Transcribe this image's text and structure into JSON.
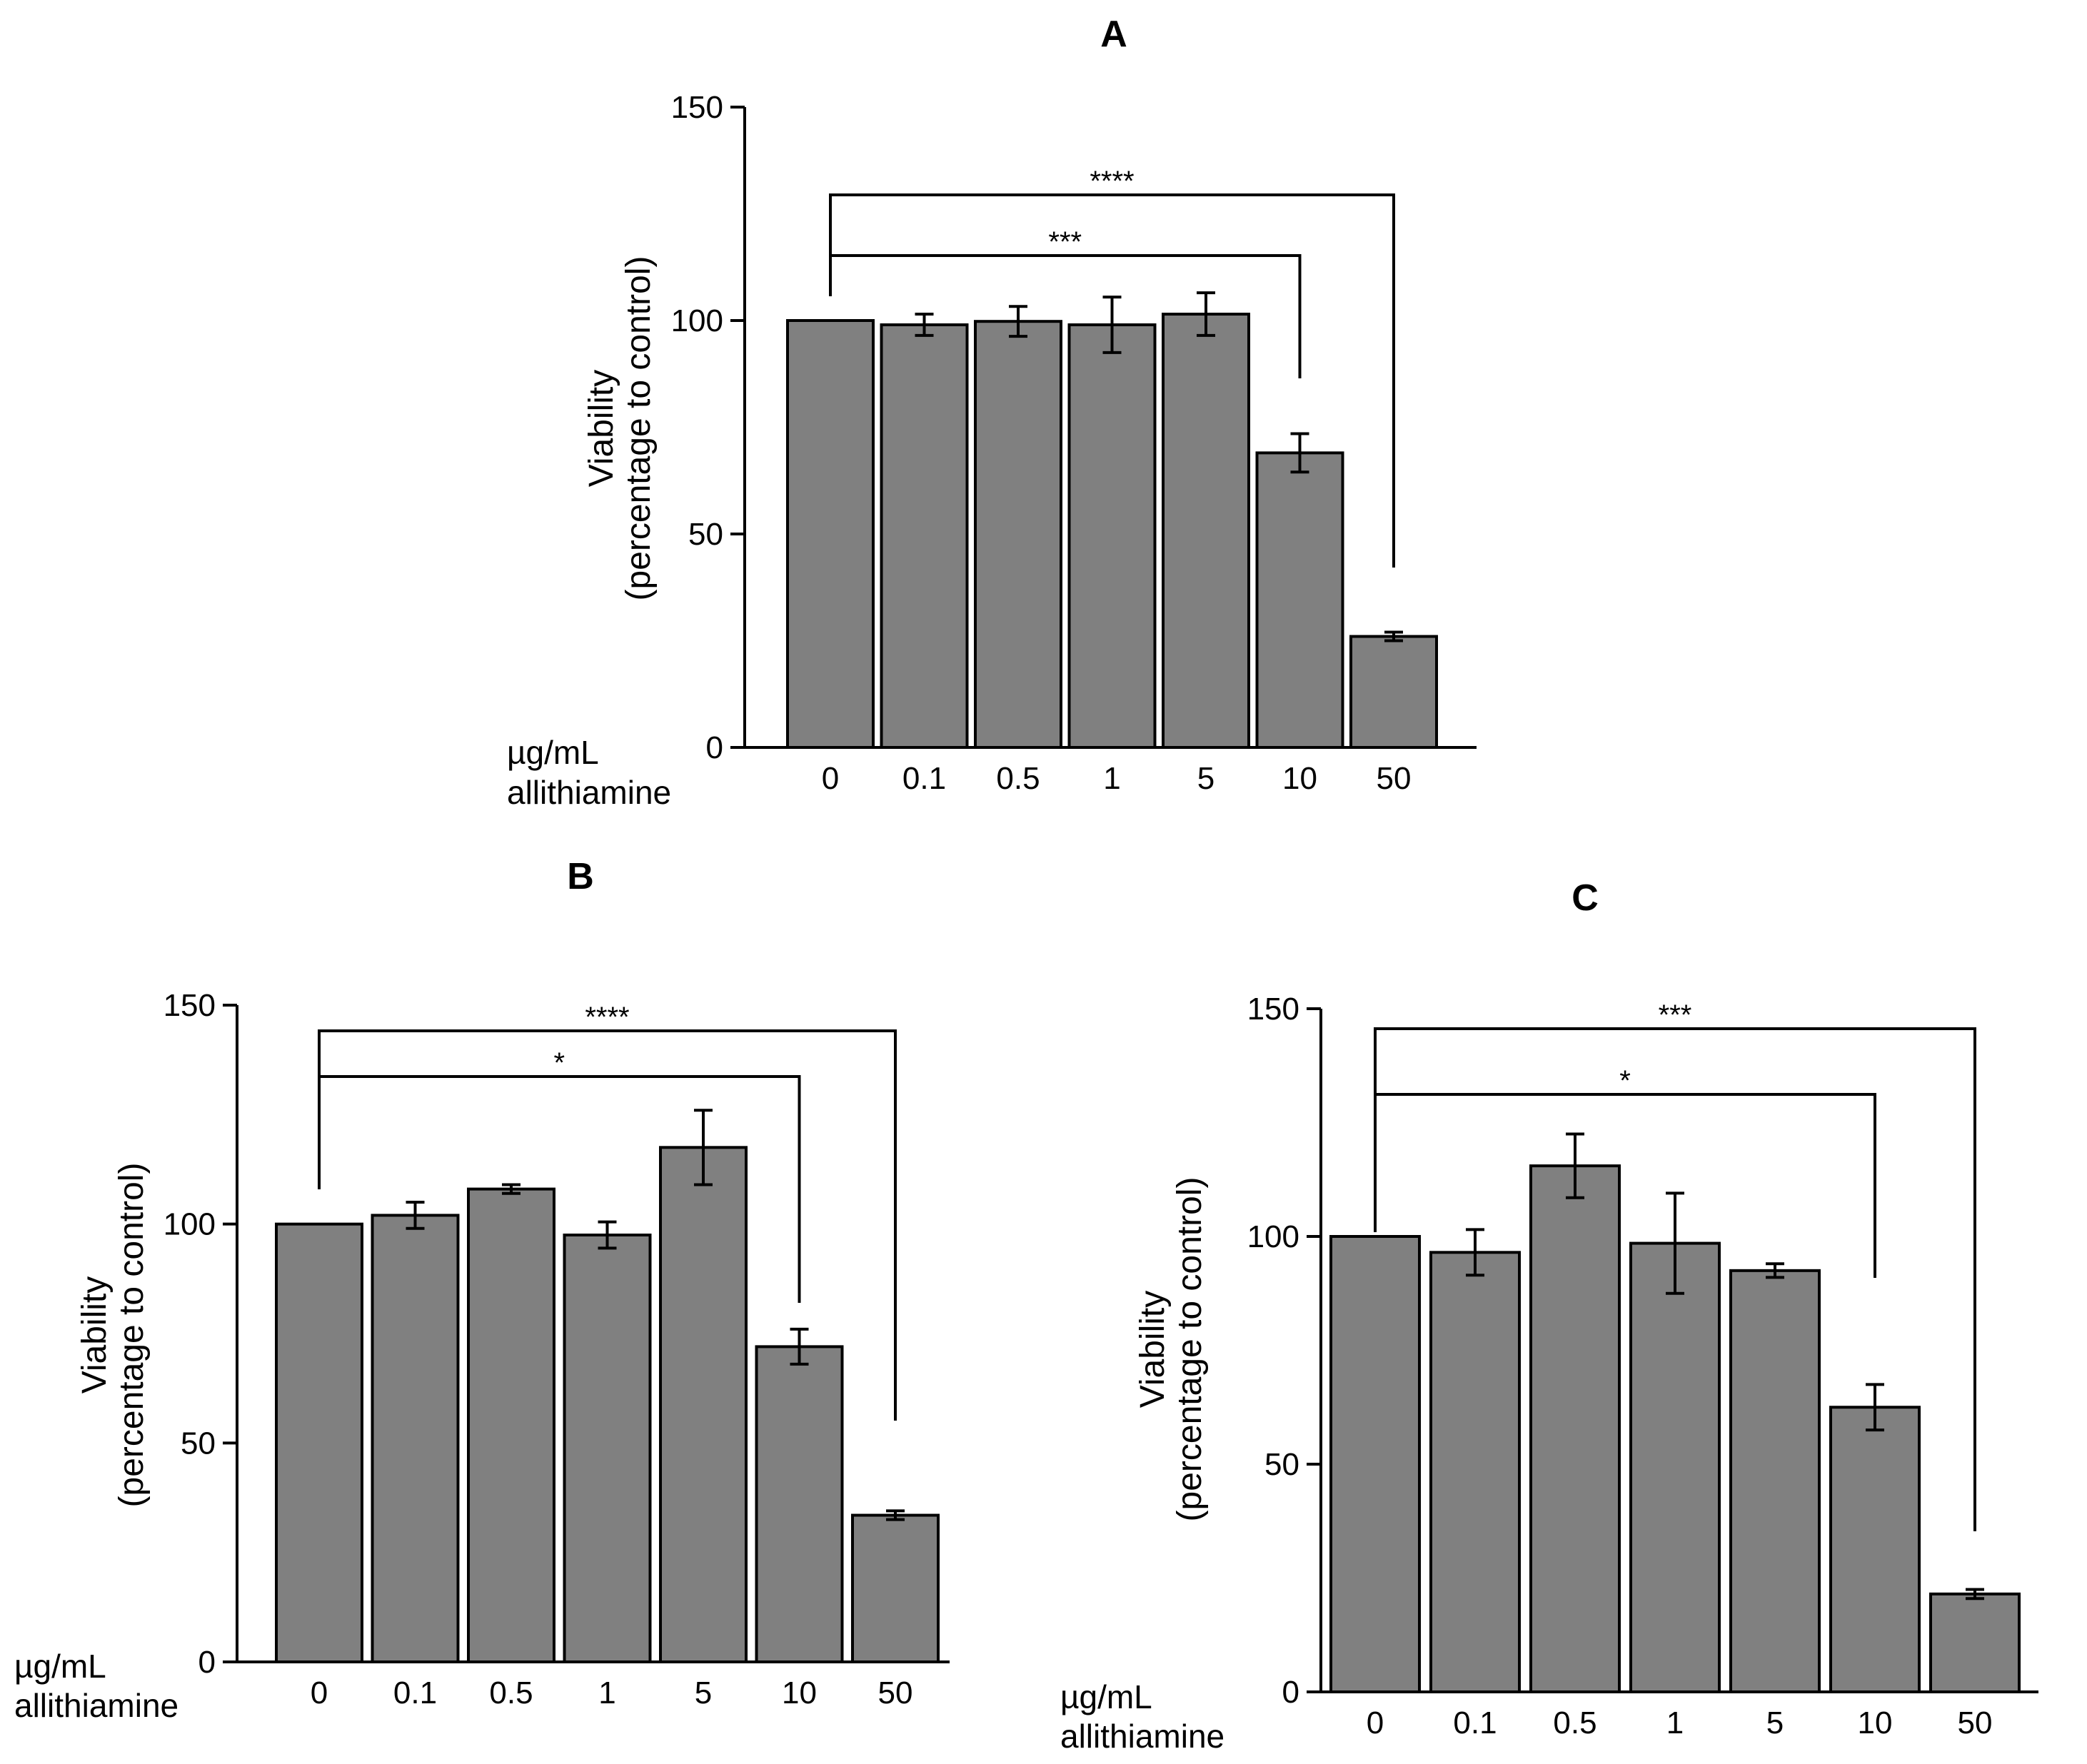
{
  "colors": {
    "bar_fill": "#808080",
    "bar_stroke": "#000000",
    "axis": "#000000",
    "background": "#ffffff"
  },
  "chart_data": [
    {
      "type": "bar",
      "panel": "A",
      "title": "A",
      "ylabel_line1": "Viability",
      "ylabel_line2": "(percentage to control)",
      "xlabel_line1": "µg/mL",
      "xlabel_line2": "allithiamine",
      "ylim": [
        0,
        150
      ],
      "yticks": [
        "0",
        "50",
        "100",
        "150"
      ],
      "categories": [
        "0",
        "0.1",
        "0.5",
        "1",
        "5",
        "10",
        "50"
      ],
      "values": [
        100,
        99,
        99.8,
        99,
        101.5,
        69,
        26
      ],
      "errors": [
        0,
        2.5,
        3.5,
        6.5,
        5,
        4.5,
        1
      ],
      "significance": [
        {
          "from": "0",
          "to": "10",
          "label": "***"
        },
        {
          "from": "0",
          "to": "50",
          "label": "****"
        }
      ]
    },
    {
      "type": "bar",
      "panel": "B",
      "title": "B",
      "ylabel_line1": "Viability",
      "ylabel_line2": "(percentage to control)",
      "xlabel_line1": "µg/mL",
      "xlabel_line2": "allithiamine",
      "ylim": [
        0,
        150
      ],
      "yticks": [
        "0",
        "50",
        "100",
        "150"
      ],
      "categories": [
        "0",
        "0.1",
        "0.5",
        "1",
        "5",
        "10",
        "50"
      ],
      "values": [
        100,
        102,
        108,
        97.5,
        117.5,
        72,
        33.5
      ],
      "errors": [
        0,
        3,
        1,
        3,
        8.5,
        4,
        1
      ],
      "significance": [
        {
          "from": "0",
          "to": "10",
          "label": "*"
        },
        {
          "from": "0",
          "to": "50",
          "label": "****"
        }
      ]
    },
    {
      "type": "bar",
      "panel": "C",
      "title": "C",
      "ylabel_line1": "Viability",
      "ylabel_line2": "(percentage to control)",
      "xlabel_line1": "µg/mL",
      "xlabel_line2": "allithiamine",
      "ylim": [
        0,
        150
      ],
      "yticks": [
        "0",
        "50",
        "100",
        "150"
      ],
      "categories": [
        "0",
        "0.1",
        "0.5",
        "1",
        "5",
        "10",
        "50"
      ],
      "values": [
        100,
        96.5,
        115.5,
        98.5,
        92.5,
        62.5,
        21.5
      ],
      "errors": [
        0,
        5,
        7,
        11,
        1.5,
        5,
        1
      ],
      "significance": [
        {
          "from": "0",
          "to": "10",
          "label": "*"
        },
        {
          "from": "0",
          "to": "50",
          "label": "***"
        }
      ]
    }
  ]
}
